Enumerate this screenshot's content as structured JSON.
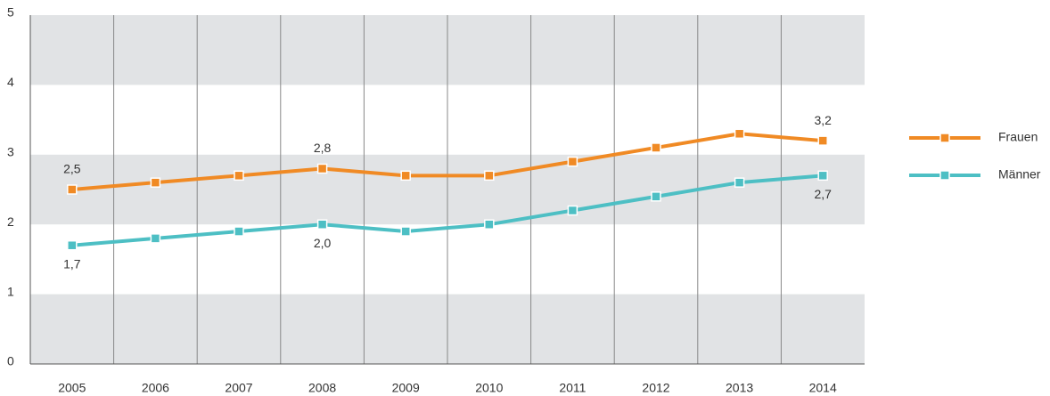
{
  "chart_data": {
    "type": "line",
    "categories": [
      "2005",
      "2006",
      "2007",
      "2008",
      "2009",
      "2010",
      "2011",
      "2012",
      "2013",
      "2014"
    ],
    "series": [
      {
        "name": "Frauen",
        "color": "#f08a24",
        "values": [
          2.5,
          2.6,
          2.7,
          2.8,
          2.7,
          2.7,
          2.9,
          3.1,
          3.3,
          3.2
        ],
        "value_labels": [
          "2,5",
          null,
          null,
          "2,8",
          null,
          null,
          null,
          null,
          null,
          "3,2"
        ]
      },
      {
        "name": "Männer",
        "color": "#4dbfc4",
        "values": [
          1.7,
          1.8,
          1.9,
          2.0,
          1.9,
          2.0,
          2.2,
          2.4,
          2.6,
          2.7
        ],
        "value_labels": [
          "1,7",
          null,
          null,
          "2,0",
          null,
          null,
          null,
          null,
          null,
          "2,7"
        ]
      }
    ],
    "ylim": [
      0,
      5
    ],
    "yticks": [
      0,
      1,
      2,
      3,
      4,
      5
    ],
    "legend": "right"
  }
}
